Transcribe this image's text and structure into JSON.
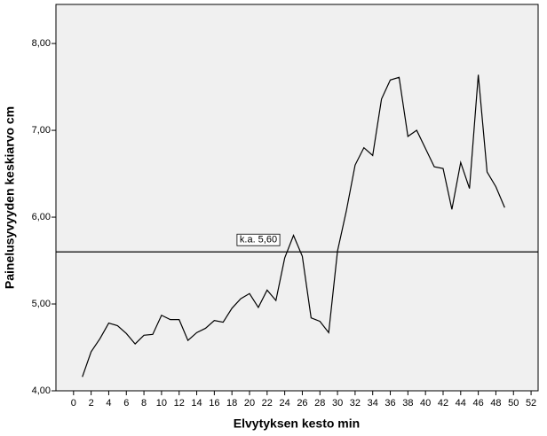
{
  "chart_data": {
    "type": "line",
    "x_label": "Elvytyksen kesto min",
    "y_label": "Painelusyvyyden keskiarvo cm",
    "x": [
      1,
      2,
      3,
      4,
      5,
      6,
      7,
      8,
      9,
      10,
      11,
      12,
      13,
      14,
      15,
      16,
      17,
      18,
      19,
      20,
      21,
      22,
      23,
      24,
      25,
      26,
      27,
      28,
      29,
      30,
      31,
      32,
      33,
      34,
      35,
      36,
      37,
      38,
      39,
      40,
      41,
      42,
      43,
      44,
      45,
      46,
      47,
      48,
      49
    ],
    "series": [
      {
        "color": "#000000",
        "values": [
          4.16,
          4.45,
          4.6,
          4.78,
          4.75,
          4.66,
          4.54,
          4.64,
          4.65,
          4.87,
          4.82,
          4.82,
          4.58,
          4.67,
          4.72,
          4.81,
          4.79,
          4.95,
          5.06,
          5.12,
          4.96,
          5.16,
          5.04,
          5.53,
          5.79,
          5.55,
          4.84,
          4.8,
          4.67,
          5.61,
          6.07,
          6.6,
          6.8,
          6.71,
          7.36,
          7.58,
          7.61,
          6.93,
          7.0,
          6.79,
          6.58,
          6.56,
          6.09,
          6.63,
          6.33,
          7.64,
          6.52,
          6.35,
          6.11
        ]
      }
    ],
    "reference_line": {
      "value": 5.6,
      "label": "k.a. 5,60"
    },
    "xlim": [
      -2,
      52.8
    ],
    "ylim": [
      4,
      8.45
    ],
    "xticks": [
      0,
      2,
      4,
      6,
      8,
      10,
      12,
      14,
      16,
      18,
      20,
      22,
      24,
      26,
      28,
      30,
      32,
      34,
      36,
      38,
      40,
      42,
      44,
      46,
      48,
      50,
      52
    ],
    "yticks": [
      {
        "value": 4,
        "label": "4,00"
      },
      {
        "value": 5,
        "label": "5,00"
      },
      {
        "value": 6,
        "label": "6,00"
      },
      {
        "value": 7,
        "label": "7,00"
      },
      {
        "value": 8,
        "label": "8,00"
      }
    ]
  }
}
